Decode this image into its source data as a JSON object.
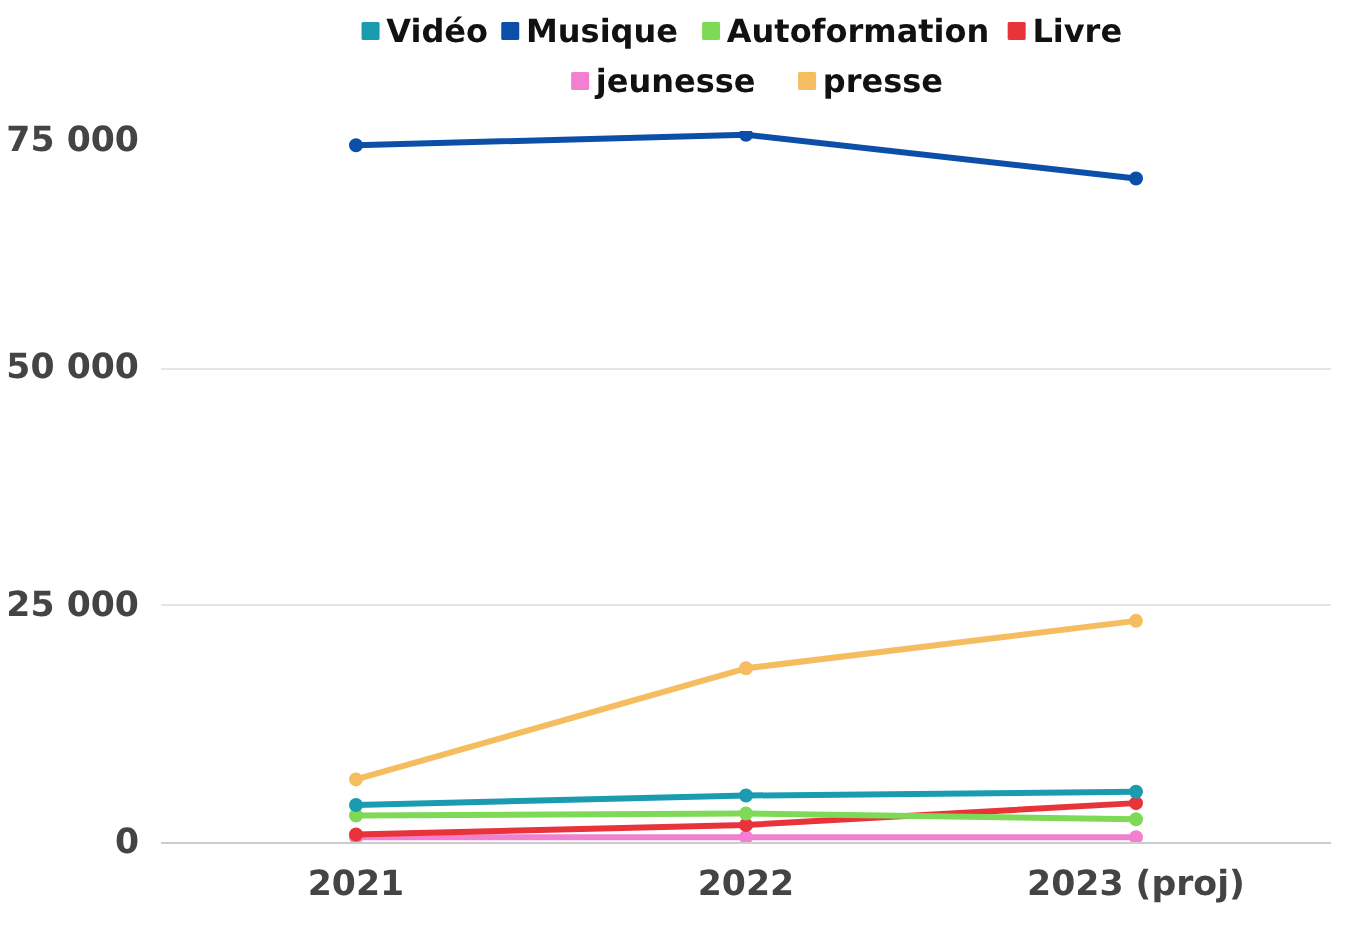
{
  "chart_data": {
    "type": "line",
    "categories": [
      "2021",
      "2022",
      "2023 (proj)"
    ],
    "series": [
      {
        "name": "Vidéo",
        "color": "#1a9bb0",
        "values": [
          4000,
          5000,
          5400
        ]
      },
      {
        "name": "Musique",
        "color": "#0b4fa8",
        "values": [
          73500,
          74600,
          70000
        ]
      },
      {
        "name": "Autoformation",
        "color": "#7ed957",
        "values": [
          2900,
          3100,
          2500
        ]
      },
      {
        "name": "Livre",
        "color": "#e8333a",
        "values": [
          900,
          1900,
          4200
        ]
      },
      {
        "name": "jeunesse",
        "color": "#f27fcf",
        "values": [
          600,
          600,
          600
        ]
      },
      {
        "name": "presse",
        "color": "#f5bd5f",
        "values": [
          6700,
          18400,
          23400
        ]
      }
    ],
    "ylim": [
      0,
      75000
    ],
    "yticks": [
      {
        "value": 0,
        "label": "0"
      },
      {
        "value": 25000,
        "label": "25 000"
      },
      {
        "value": 50000,
        "label": "50 000"
      },
      {
        "value": 75000,
        "label": "75 000"
      }
    ],
    "grid": "y",
    "legend": "top",
    "marker": "circle",
    "line_style": "solid"
  }
}
